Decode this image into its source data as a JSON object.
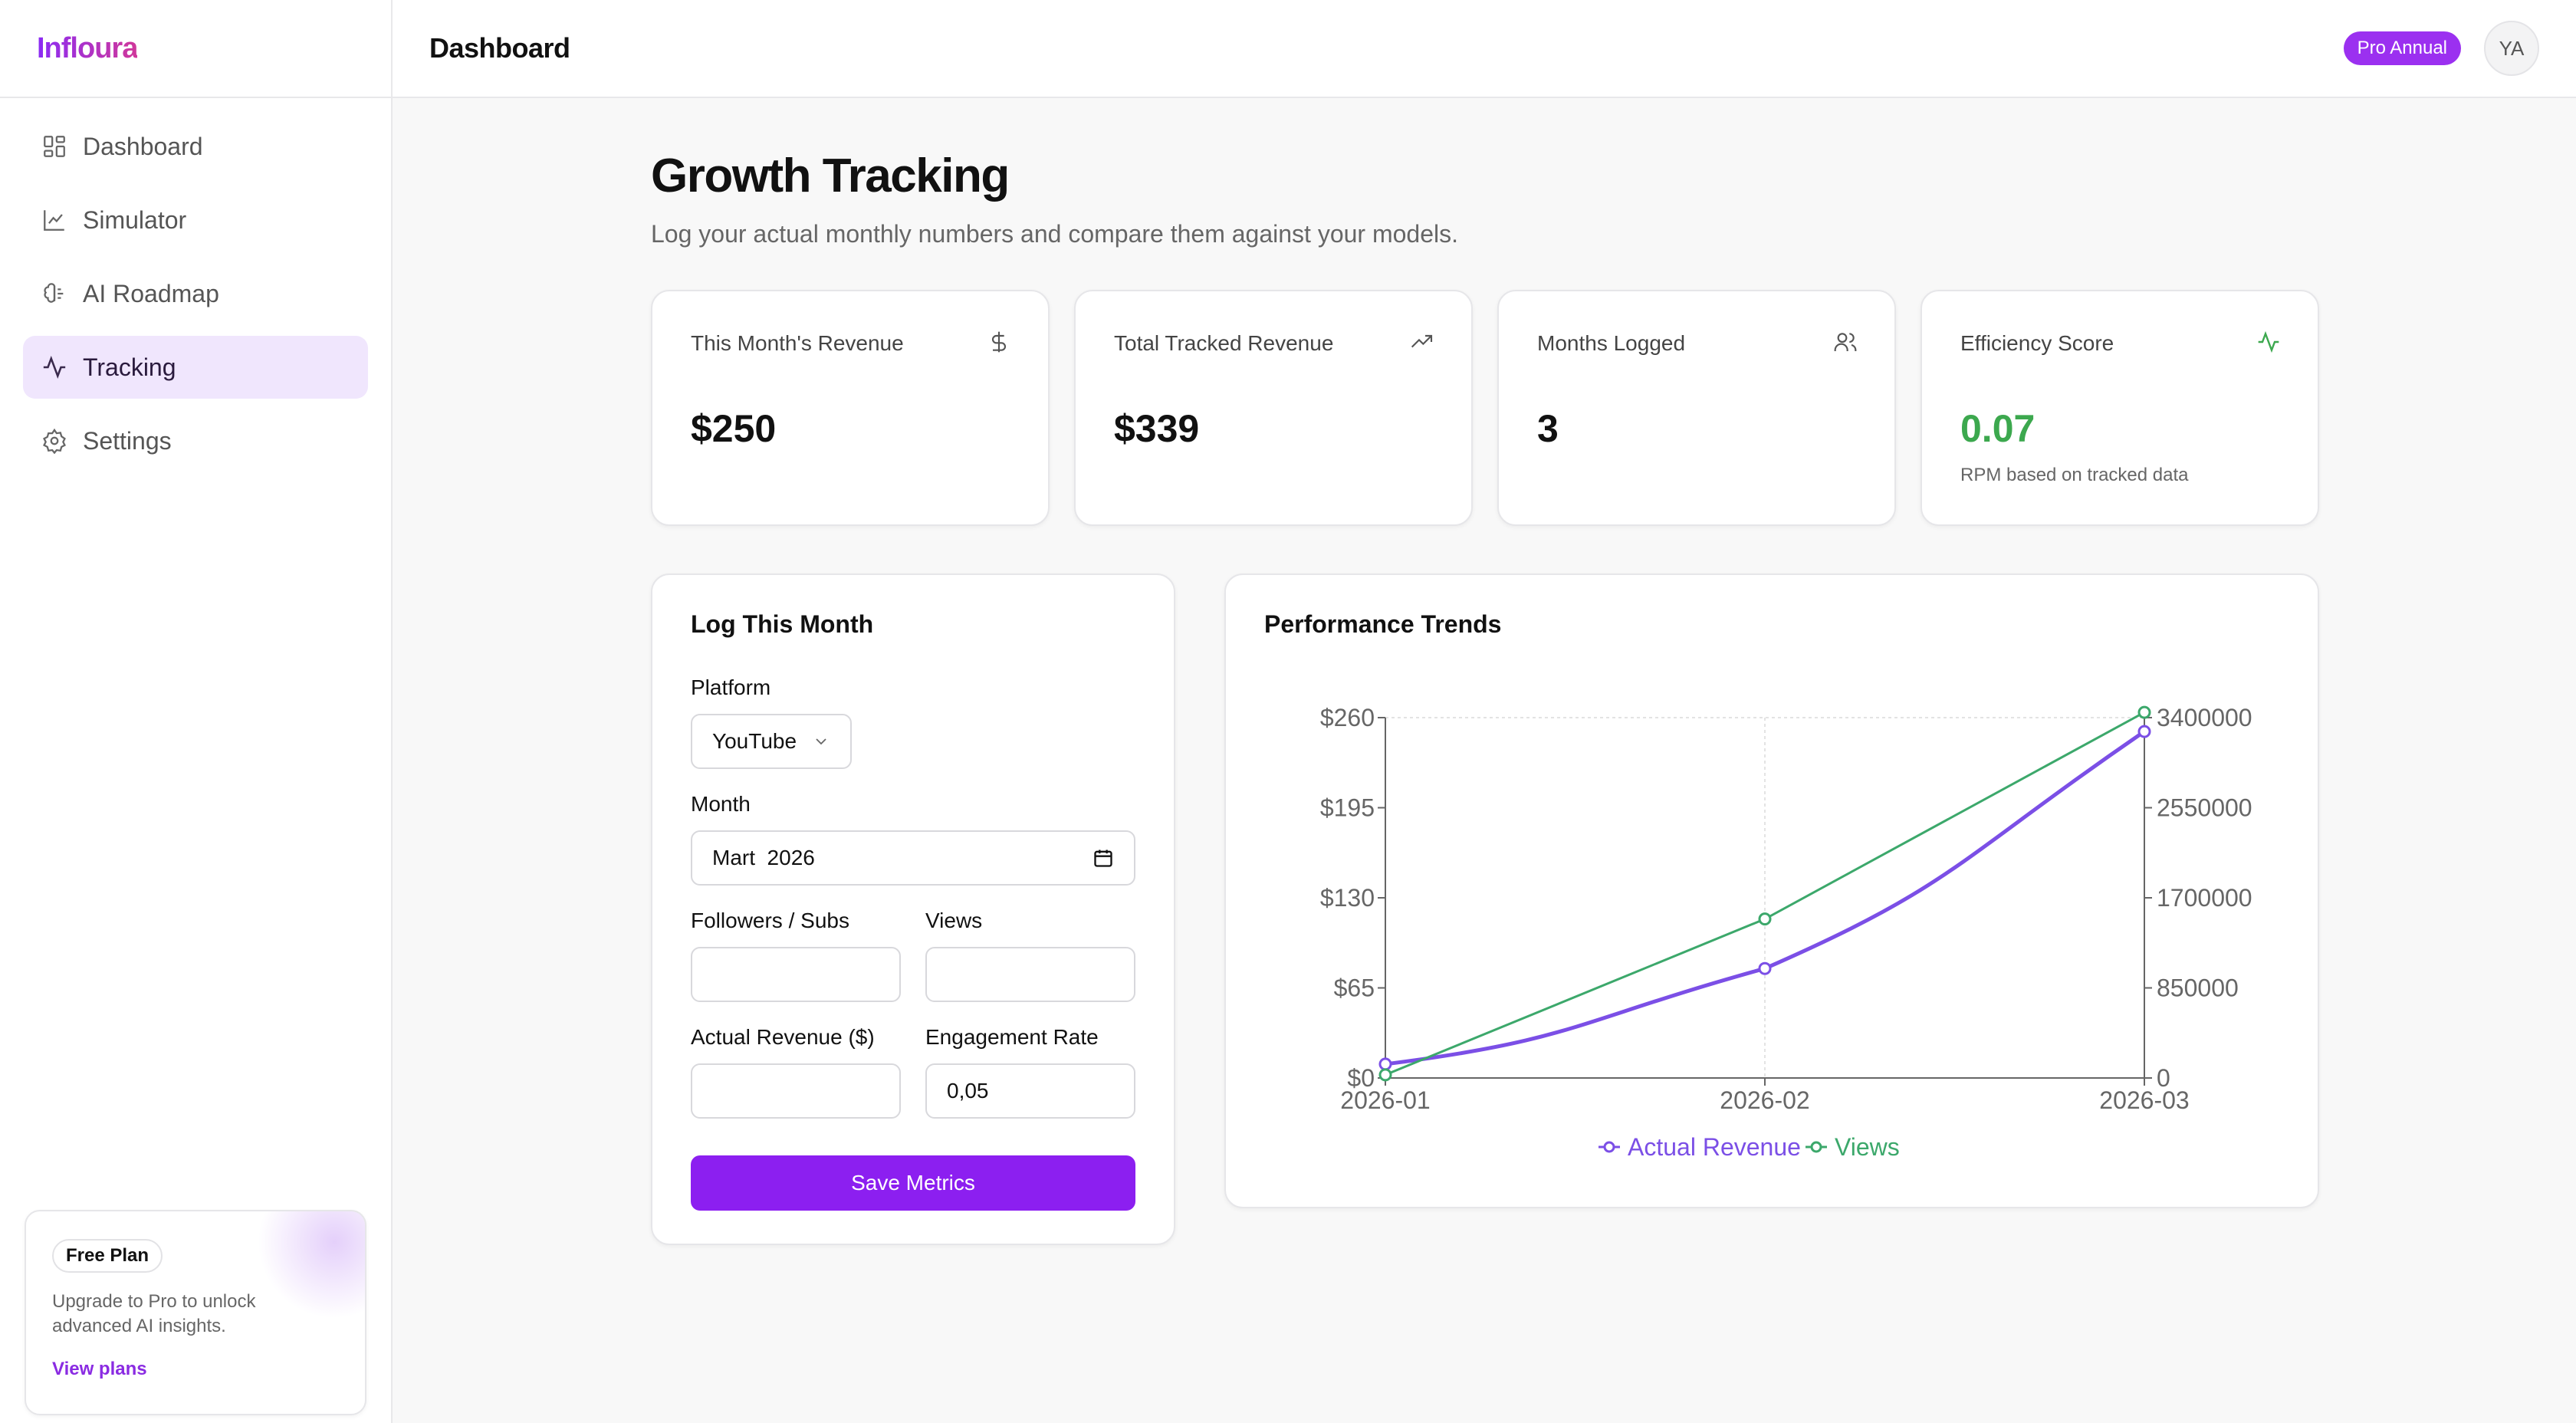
{
  "sidebar": {
    "brand": "Infloura",
    "items": [
      {
        "label": "Dashboard",
        "icon": "dashboard-grid-icon"
      },
      {
        "label": "Simulator",
        "icon": "line-chart-icon"
      },
      {
        "label": "AI Roadmap",
        "icon": "brain-icon"
      },
      {
        "label": "Tracking",
        "icon": "activity-icon",
        "active": true
      },
      {
        "label": "Settings",
        "icon": "gear-icon"
      }
    ],
    "plan": {
      "badge": "Free Plan",
      "text": "Upgrade to Pro to unlock advanced AI insights.",
      "link": "View plans"
    }
  },
  "topbar": {
    "title": "Dashboard",
    "badge": "Pro Annual",
    "avatar": "YA"
  },
  "page": {
    "title": "Growth Tracking",
    "subtitle": "Log your actual monthly numbers and compare them against your models."
  },
  "stats": [
    {
      "label": "This Month's Revenue",
      "value": "$250",
      "icon": "dollar-icon"
    },
    {
      "label": "Total Tracked Revenue",
      "value": "$339",
      "icon": "trending-up-icon"
    },
    {
      "label": "Months Logged",
      "value": "3",
      "icon": "users-icon"
    },
    {
      "label": "Efficiency Score",
      "value": "0.07",
      "note": "RPM based on tracked data",
      "icon": "activity-icon"
    }
  ],
  "log": {
    "title": "Log This Month",
    "platform_label": "Platform",
    "platform_value": "YouTube",
    "month_label": "Month",
    "month_value": "Mart  2026",
    "followers_label": "Followers / Subs",
    "followers_value": "",
    "views_label": "Views",
    "views_value": "",
    "revenue_label": "Actual Revenue ($)",
    "revenue_value": "",
    "engagement_label": "Engagement Rate",
    "engagement_value": "0,05",
    "save_label": "Save Metrics"
  },
  "chart_title": "Performance Trends",
  "colors": {
    "accent": "#8c1ff0",
    "revenue": "#7b4fe6",
    "views": "#3ca86b",
    "green": "#3ca84e"
  },
  "chart_data": {
    "type": "line",
    "x": [
      "2026-01",
      "2026-02",
      "2026-03"
    ],
    "series": [
      {
        "name": "Actual Revenue",
        "axis": "left",
        "values": [
          10,
          79,
          250
        ]
      },
      {
        "name": "Views",
        "axis": "right",
        "values": [
          30000,
          1500000,
          3450000
        ]
      }
    ],
    "left_axis": {
      "ticks": [
        "$0",
        "$65",
        "$130",
        "$195",
        "$260"
      ],
      "ylim": [
        0,
        260
      ]
    },
    "right_axis": {
      "ticks": [
        "0",
        "850000",
        "1700000",
        "2550000",
        "3400000"
      ],
      "ylim": [
        0,
        3400000
      ]
    },
    "grid": "dashed vertical",
    "legend": "bottom-center"
  }
}
